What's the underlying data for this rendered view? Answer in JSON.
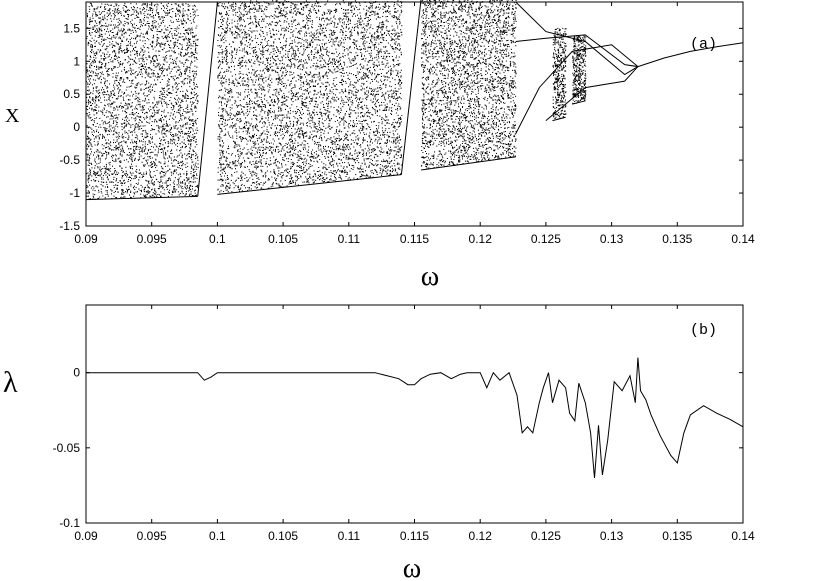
{
  "chart_data": [
    {
      "panel": "(a)",
      "type": "scatter",
      "xlabel": "ω",
      "ylabel": "X",
      "xlim": [
        0.09,
        0.14
      ],
      "ylim": [
        -1.5,
        1.9
      ],
      "x_ticks": [
        "0.09",
        "0.095",
        "0.1",
        "0.105",
        "0.11",
        "0.115",
        "0.12",
        "0.125",
        "0.13",
        "0.135",
        "0.14"
      ],
      "y_ticks": [
        "-1.5",
        "-1",
        "-0.5",
        "0",
        "0.5",
        "1",
        "1.5"
      ],
      "x_tick_values": [
        0.09,
        0.095,
        0.1,
        0.105,
        0.11,
        0.115,
        0.12,
        0.125,
        0.13,
        0.135,
        0.14
      ],
      "y_tick_values": [
        -1.5,
        -1,
        -0.5,
        0,
        0.5,
        1,
        1.5
      ],
      "grid": false,
      "color": "#000000",
      "chaotic_bands": [
        {
          "x": [
            0.09,
            0.0985
          ],
          "y_min_start": -1.1,
          "y_min_end": -1.05,
          "y_max": 1.88
        },
        {
          "x": [
            0.1,
            0.114
          ],
          "y_min_start": -1.02,
          "y_min_end": -0.72,
          "y_max": 1.92
        },
        {
          "x": [
            0.1155,
            0.1227
          ],
          "y_min_start": -0.65,
          "y_min_end": -0.45,
          "y_max": 1.95
        },
        {
          "x": [
            0.1255,
            0.1265
          ],
          "y_min_start": 0.1,
          "y_min_end": 0.15,
          "y_max": 1.5
        },
        {
          "x": [
            0.127,
            0.128
          ],
          "y_min_start": 0.35,
          "y_min_end": 0.4,
          "y_max": 1.4
        }
      ],
      "periodic_branches": [
        {
          "x": [
            0.0985,
            0.1
          ],
          "y": [
            -1.05,
            1.9
          ]
        },
        {
          "x": [
            0.114,
            0.1155
          ],
          "y": [
            -0.72,
            1.95
          ]
        },
        {
          "x": [
            0.1227,
            0.125,
            0.128,
            0.131,
            0.132
          ],
          "y": [
            1.3,
            1.35,
            1.4,
            0.95,
            0.92
          ]
        },
        {
          "x": [
            0.1227,
            0.1245,
            0.127,
            0.13,
            0.132
          ],
          "y": [
            -0.1,
            0.6,
            1.15,
            1.25,
            0.92
          ]
        },
        {
          "x": [
            0.1227,
            0.125,
            0.128,
            0.131,
            0.132
          ],
          "y": [
            1.9,
            1.45,
            1.3,
            0.8,
            0.92
          ]
        },
        {
          "x": [
            0.125,
            0.128,
            0.131,
            0.132
          ],
          "y": [
            0.1,
            0.6,
            0.7,
            0.92
          ]
        },
        {
          "x": [
            0.132,
            0.134,
            0.136,
            0.138,
            0.14
          ],
          "y": [
            0.92,
            1.05,
            1.15,
            1.22,
            1.28
          ]
        }
      ]
    },
    {
      "panel": "(b)",
      "type": "line",
      "xlabel": "ω",
      "ylabel": "λ",
      "xlim": [
        0.09,
        0.14
      ],
      "ylim": [
        -0.1,
        0.045
      ],
      "x_ticks": [
        "0.09",
        "0.095",
        "0.1",
        "0.105",
        "0.11",
        "0.115",
        "0.12",
        "0.125",
        "0.13",
        "0.135",
        "0.14"
      ],
      "y_ticks": [
        "-0.1",
        "-0.05",
        "0"
      ],
      "x_tick_values": [
        0.09,
        0.095,
        0.1,
        0.105,
        0.11,
        0.115,
        0.12,
        0.125,
        0.13,
        0.135,
        0.14
      ],
      "y_tick_values": [
        -0.1,
        -0.05,
        0
      ],
      "grid": false,
      "color": "#000000",
      "x": [
        0.09,
        0.0985,
        0.099,
        0.0995,
        0.1,
        0.108,
        0.112,
        0.1138,
        0.1145,
        0.115,
        0.1155,
        0.1162,
        0.117,
        0.1178,
        0.1185,
        0.119,
        0.12,
        0.1205,
        0.121,
        0.1215,
        0.1222,
        0.1228,
        0.1232,
        0.1236,
        0.124,
        0.1245,
        0.1248,
        0.1252,
        0.1255,
        0.126,
        0.1265,
        0.1268,
        0.1272,
        0.1275,
        0.128,
        0.1284,
        0.1287,
        0.129,
        0.1293,
        0.1297,
        0.1302,
        0.1308,
        0.1314,
        0.1318,
        0.132,
        0.1322,
        0.1326,
        0.133,
        0.1337,
        0.1345,
        0.135,
        0.1355,
        0.136,
        0.137,
        0.138,
        0.139,
        0.14
      ],
      "y": [
        0,
        0,
        -0.005,
        -0.003,
        0,
        0,
        0,
        -0.004,
        -0.008,
        -0.008,
        -0.004,
        -0.001,
        0,
        -0.004,
        -0.001,
        0,
        0,
        -0.01,
        0,
        -0.005,
        0,
        -0.015,
        -0.04,
        -0.036,
        -0.04,
        -0.02,
        -0.01,
        0,
        -0.02,
        -0.005,
        -0.01,
        -0.027,
        -0.032,
        -0.007,
        -0.02,
        -0.04,
        -0.07,
        -0.035,
        -0.068,
        -0.045,
        -0.006,
        -0.012,
        -0.002,
        -0.02,
        0.01,
        -0.012,
        -0.018,
        -0.028,
        -0.042,
        -0.055,
        -0.06,
        -0.04,
        -0.028,
        -0.022,
        -0.027,
        -0.031,
        -0.036
      ]
    }
  ]
}
